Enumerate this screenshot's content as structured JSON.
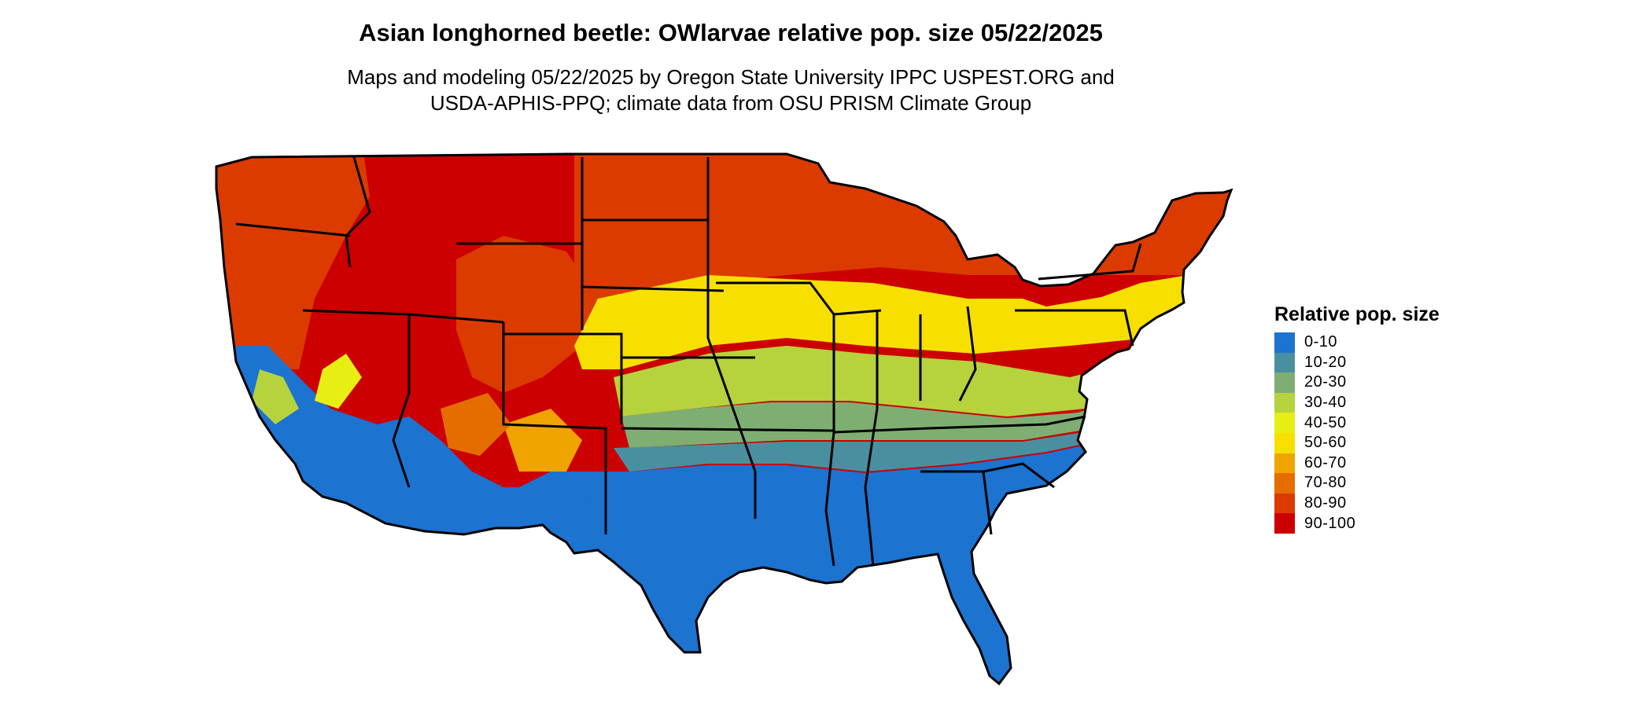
{
  "title": "Asian longhorned beetle: OWlarvae relative pop. size 05/22/2025",
  "subtitle_lines": [
    "Maps and modeling 05/22/2025 by Oregon State University IPPC USPEST.ORG and",
    "USDA-APHIS-PPQ; climate data from OSU PRISM Climate Group"
  ],
  "legend": {
    "title": "Relative pop. size",
    "items": [
      {
        "label": "0-10",
        "color": "#1c73d0"
      },
      {
        "label": "10-20",
        "color": "#4a8fa0"
      },
      {
        "label": "20-30",
        "color": "#7fae72"
      },
      {
        "label": "30-40",
        "color": "#b6d23d"
      },
      {
        "label": "40-50",
        "color": "#e6ee14"
      },
      {
        "label": "50-60",
        "color": "#f7e000"
      },
      {
        "label": "60-70",
        "color": "#f0a400"
      },
      {
        "label": "70-80",
        "color": "#e56d00"
      },
      {
        "label": "80-90",
        "color": "#dc3b00"
      },
      {
        "label": "90-100",
        "color": "#cc0000"
      }
    ]
  },
  "map": {
    "region": "contiguous-united-states",
    "border_color": "#000000"
  }
}
